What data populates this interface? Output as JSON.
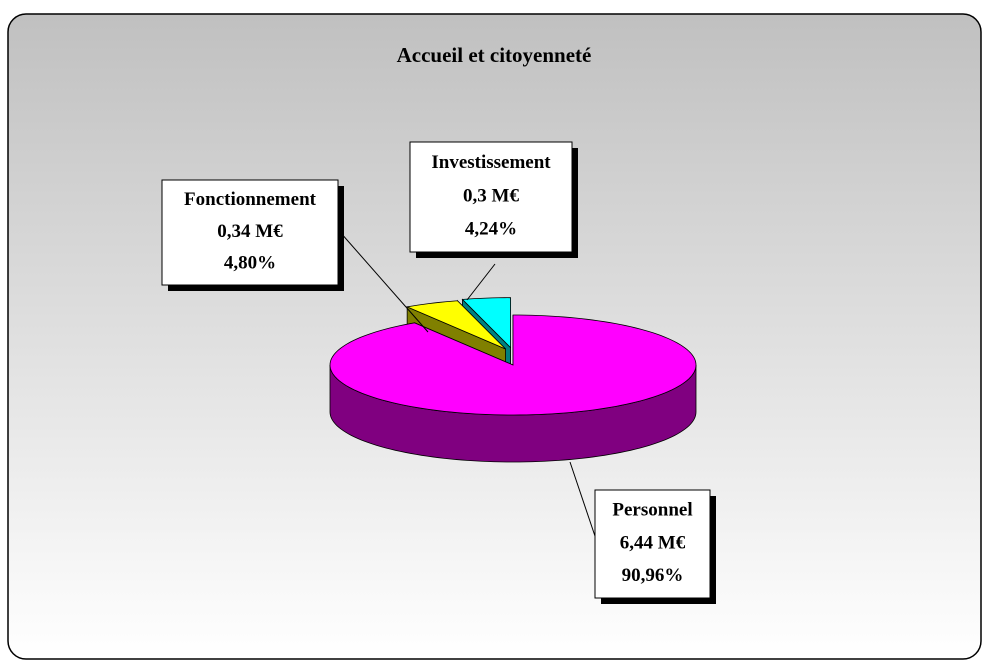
{
  "chart_data": {
    "type": "pie3d",
    "title": "Accueil et citoyenneté",
    "categories": [
      "Investissement",
      "Fonctionnement",
      "Personnel"
    ],
    "values": [
      0.3,
      0.34,
      6.44
    ],
    "value_labels": [
      "0,3 M€",
      "0,34 M€",
      "6,44 M€"
    ],
    "percentages": [
      4.24,
      4.8,
      90.96
    ],
    "percentage_labels": [
      "4,24%",
      "4,80%",
      "90,96%"
    ],
    "colors": [
      "#00ffff",
      "#ffff00",
      "#ff00ff"
    ],
    "side_colors": [
      "#008080",
      "#808000",
      "#800080"
    ],
    "exploded": [
      true,
      true,
      false
    ]
  }
}
